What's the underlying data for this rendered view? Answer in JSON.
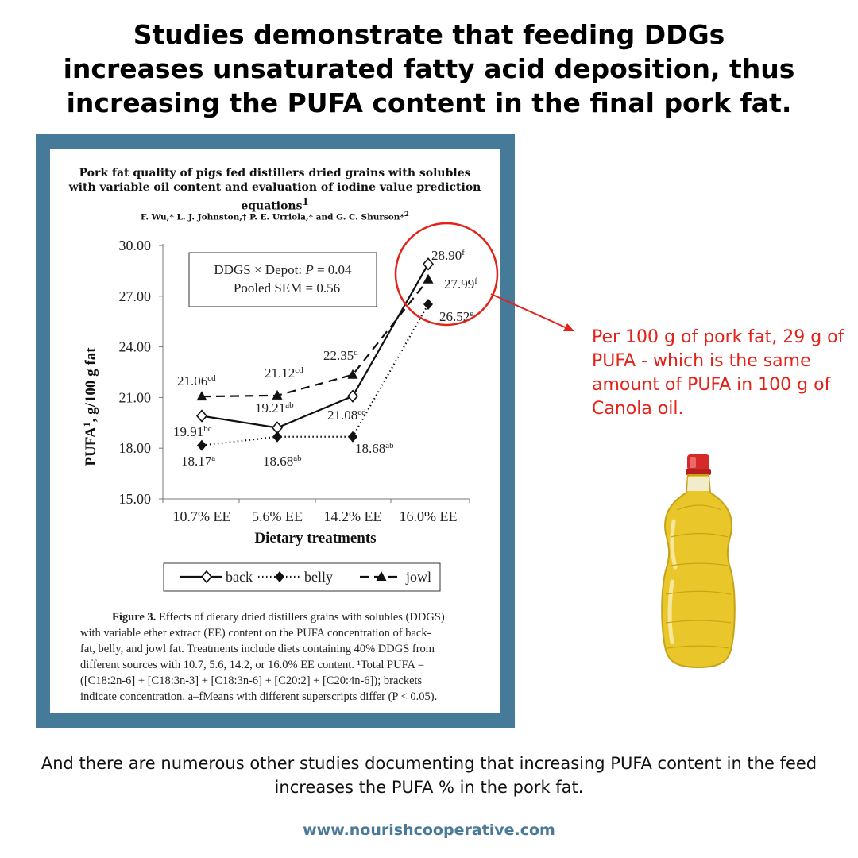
{
  "headline": [
    "Studies demonstrate that feeding DDGs",
    "increases unsaturated fatty acid deposition, thus",
    "increasing the PUFA content in the final pork fat."
  ],
  "paper": {
    "title_line1": "Pork fat quality of pigs fed distillers dried grains with solubles",
    "title_line2": "with variable oil content and evaluation of iodine value prediction equations",
    "title_sup": "1",
    "authors": "F. Wu,* L. J. Johnston,† P. E. Urriola,* and G. C. Shurson*",
    "authors_sup": "2"
  },
  "chart_data": {
    "type": "line",
    "categories": [
      "10.7% EE",
      "5.6% EE",
      "14.2% EE",
      "16.0% EE"
    ],
    "xlabel": "Dietary treatments",
    "ylabel": "PUFA",
    "ylabel_sup": "1",
    "ylabel_unit": ", g/100 g fat",
    "ylim": [
      15,
      30
    ],
    "yticks": [
      "15.00",
      "18.00",
      "21.00",
      "24.00",
      "27.00",
      "30.00"
    ],
    "series": [
      {
        "name": "back",
        "line": "solid",
        "marker": "open-diamond",
        "values": [
          19.91,
          19.21,
          21.08,
          28.9
        ],
        "labels": [
          "19.91",
          "19.21",
          "21.08",
          "28.90"
        ],
        "sups": [
          "bc",
          "ab",
          "cd",
          "f"
        ]
      },
      {
        "name": "belly",
        "line": "dotted",
        "marker": "filled-diamond",
        "values": [
          18.17,
          18.68,
          18.68,
          26.52
        ],
        "labels": [
          "18.17",
          "18.68",
          "18.68",
          "26.52"
        ],
        "sups": [
          "a",
          "ab",
          "ab",
          "e"
        ]
      },
      {
        "name": "jowl",
        "line": "dashed",
        "marker": "filled-triangle",
        "values": [
          21.06,
          21.12,
          22.35,
          27.99
        ],
        "labels": [
          "21.06",
          "21.12",
          "22.35",
          "27.99"
        ],
        "sups": [
          "cd",
          "cd",
          "d",
          "f"
        ]
      }
    ],
    "stats_box": {
      "line1_prefix": "DDGS × Depot: ",
      "line1_p": "P",
      "line1_suffix": " = 0.04",
      "line2": "Pooled SEM = 0.56"
    },
    "legend_position": "bottom"
  },
  "caption": {
    "label": "Figure 3.",
    "lines": [
      " Effects of dietary dried distillers grains with solubles (DDGS)",
      "with variable ether extract (EE) content on the PUFA concentration of back-",
      "fat, belly, and jowl fat. Treatments include diets containing 40% DDGS from",
      "different sources with 10.7, 5.6, 14.2, or 16.0% EE content. ¹Total PUFA =",
      "([C18:2n-6] + [C18:3n-3] + [C18:3n-6] + [C20:2] + [C20:4n-6]); brackets",
      "indicate concentration. a–fMeans with different superscripts differ (P < 0.05)."
    ]
  },
  "side_note": "Per 100 g of pork fat, 29 g of PUFA - which is the same amount of PUFA in 100 g of Canola oil.",
  "bottom_text": "And there are numerous other studies documenting that increasing PUFA content in the feed increases the PUFA % in the pork fat.",
  "website": "www.nourishcooperative.com",
  "colors": {
    "accent_red": "#e32219",
    "panel_blue": "#457a99",
    "website_blue": "#4a7a96",
    "oil_yellow": "#e9c62a",
    "cap_red": "#d42a2a"
  },
  "icons": [
    "canola-oil-bottle-icon"
  ]
}
